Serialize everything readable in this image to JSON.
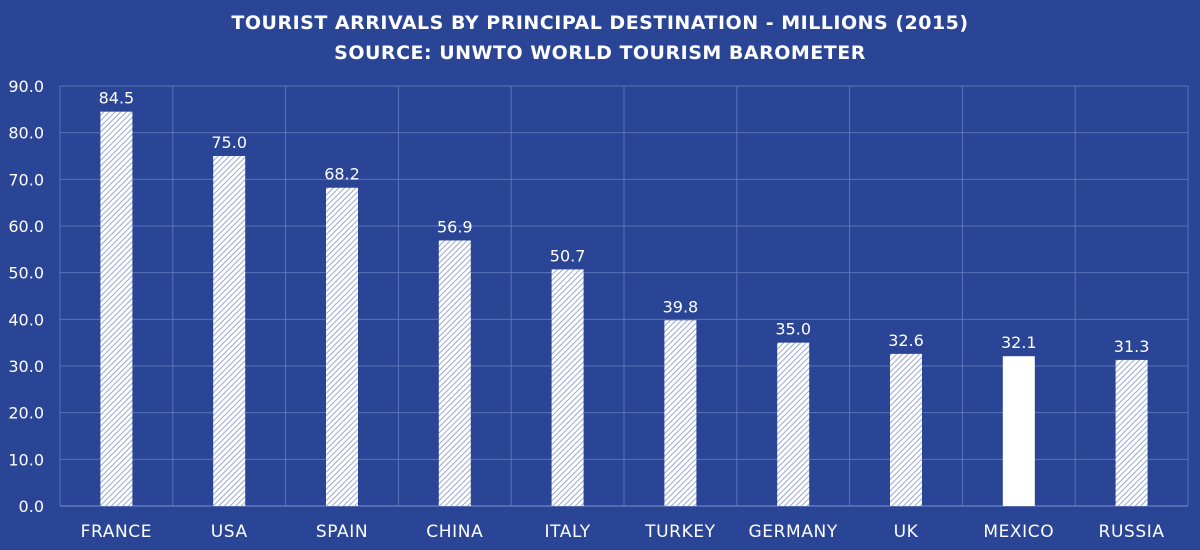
{
  "chart_data": {
    "type": "bar",
    "title": [
      "TOURIST ARRIVALS BY PRINCIPAL DESTINATION - MILLIONS (2015)",
      "SOURCE: UNWTO WORLD TOURISM BAROMETER"
    ],
    "categories": [
      "FRANCE",
      "USA",
      "SPAIN",
      "CHINA",
      "ITALY",
      "TURKEY",
      "GERMANY",
      "UK",
      "MEXICO",
      "RUSSIA"
    ],
    "values": [
      84.5,
      75.0,
      68.2,
      56.9,
      50.7,
      39.8,
      35.0,
      32.6,
      32.1,
      31.3
    ],
    "value_labels": [
      "84.5",
      "75.0",
      "68.2",
      "56.9",
      "50.7",
      "39.8",
      "35.0",
      "32.6",
      "32.1",
      "31.3"
    ],
    "highlight_category": "MEXICO",
    "xlabel": "",
    "ylabel": "",
    "ylim": [
      0,
      90
    ],
    "ytick_step": 10,
    "ytick_labels": [
      "0.0",
      "10.0",
      "20.0",
      "30.0",
      "40.0",
      "50.0",
      "60.0",
      "70.0",
      "80.0",
      "90.0"
    ],
    "grid": true,
    "legend": "none"
  },
  "colors": {
    "background": "#2a4496",
    "bar_fill": "#ffffff",
    "bar_hatch": "#9aa8cf",
    "highlight_fill": "#ffffff",
    "text": "#ffffff",
    "grid": "#5b73b6"
  }
}
